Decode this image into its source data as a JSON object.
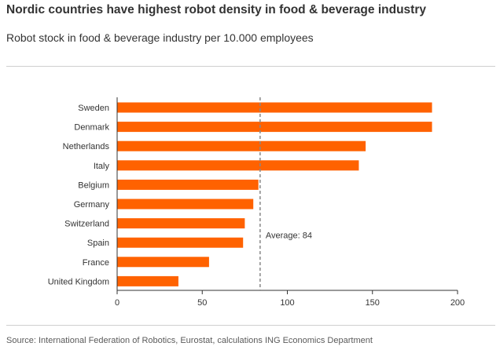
{
  "header": {
    "title": "Nordic countries have highest robot density in food & beverage industry",
    "subtitle": "Robot stock in food & beverage industry per 10.000 employees"
  },
  "footer": {
    "source": "Source: International Federation of Robotics, Eurostat, calculations ING Economics Department"
  },
  "colors": {
    "bar": "#ff6200",
    "average_line": "#888888",
    "axis": "#333333",
    "rule": "#cfcfcf"
  },
  "chart_data": {
    "type": "bar",
    "orientation": "horizontal",
    "title": "Nordic countries have highest robot density in food & beverage industry",
    "subtitle": "Robot stock in food & beverage industry per 10.000 employees",
    "categories": [
      "Sweden",
      "Denmark",
      "Netherlands",
      "Italy",
      "Belgium",
      "Germany",
      "Switzerland",
      "Spain",
      "France",
      "United Kingdom"
    ],
    "values": [
      185,
      185,
      146,
      142,
      83,
      80,
      75,
      74,
      54,
      36
    ],
    "xlim": [
      0,
      200
    ],
    "xticks": [
      0,
      50,
      100,
      150,
      200
    ],
    "xlabel": "",
    "ylabel": "",
    "reference_line": {
      "value": 84,
      "label": "Average: 84"
    },
    "grid": false,
    "legend": "none"
  }
}
